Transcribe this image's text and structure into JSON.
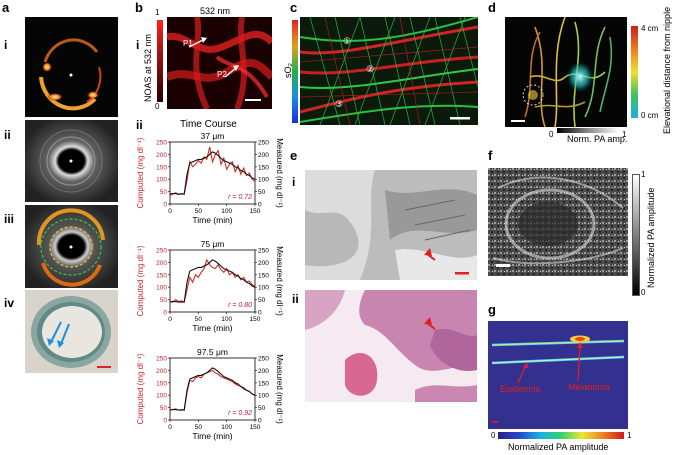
{
  "panels": {
    "a": {
      "label": "a",
      "sub": [
        "i",
        "ii",
        "iii",
        "iv"
      ]
    },
    "b": {
      "label": "b",
      "sub_i": "i",
      "sub_ii": "ii",
      "wavelength": "532 nm",
      "y_label": "NOAS at 532 nm",
      "cb_max": "1",
      "cb_min": "0",
      "p1": "P1",
      "p2": "P2",
      "time_course": "Time Course"
    },
    "c": {
      "label": "c",
      "y_label": "sO₂",
      "c1": "①",
      "c2": "②",
      "c3": "③"
    },
    "d": {
      "label": "d",
      "cb_top": "4 cm",
      "cb_bottom": "0 cm",
      "cb_label": "Elevational distance from nipple",
      "x_min": "0",
      "x_label": "Norm. PA amp.",
      "x_max": "1"
    },
    "e": {
      "label": "e",
      "sub_i": "i",
      "sub_ii": "ii"
    },
    "f": {
      "label": "f",
      "cb_max": "1",
      "cb_min": "0",
      "cb_label": "Normalized PA amplitude"
    },
    "g": {
      "label": "g",
      "epidermis": "Epidermis",
      "melanoma": "Melanoma",
      "cb_min": "0",
      "cb_max": "1",
      "cb_label": "Normalized PA amplitude"
    }
  },
  "chart_data": [
    {
      "type": "line",
      "title": "37 μm",
      "xlabel": "Time (min)",
      "ylabel_left": "Computed (mg dl⁻¹)",
      "ylabel_right": "Measured (mg dl⁻¹)",
      "xlim": [
        0,
        150
      ],
      "ylim": [
        0,
        250
      ],
      "xticks": [
        0,
        50,
        100,
        150
      ],
      "yticks": [
        0,
        50,
        100,
        150,
        200,
        250
      ],
      "annotation": "r = 0.72",
      "series": [
        {
          "color": "#d22a2a",
          "x": [
            0,
            5,
            10,
            15,
            20,
            25,
            30,
            35,
            40,
            45,
            50,
            55,
            60,
            65,
            70,
            75,
            80,
            85,
            90,
            95,
            100,
            105,
            110,
            115,
            120,
            125,
            130,
            135,
            140,
            145,
            150
          ],
          "y": [
            35,
            40,
            45,
            38,
            42,
            40,
            95,
            170,
            150,
            160,
            175,
            165,
            190,
            180,
            230,
            170,
            200,
            215,
            160,
            185,
            140,
            160,
            170,
            130,
            155,
            120,
            145,
            115,
            125,
            100,
            90
          ]
        },
        {
          "color": "#111111",
          "x": [
            0,
            5,
            10,
            15,
            20,
            25,
            30,
            35,
            40,
            45,
            50,
            55,
            60,
            65,
            70,
            75,
            80,
            85,
            90,
            95,
            100,
            105,
            110,
            115,
            120,
            125,
            130,
            135,
            140,
            145,
            150
          ],
          "y": [
            40,
            42,
            42,
            40,
            40,
            40,
            120,
            165,
            170,
            175,
            180,
            180,
            185,
            190,
            200,
            210,
            205,
            195,
            185,
            175,
            170,
            165,
            160,
            150,
            145,
            135,
            130,
            120,
            115,
            105,
            100
          ]
        }
      ]
    },
    {
      "type": "line",
      "title": "75 μm",
      "xlabel": "Time (min)",
      "ylabel_left": "Computed (mg dl⁻¹)",
      "ylabel_right": "Measured (mg dl⁻¹)",
      "xlim": [
        0,
        150
      ],
      "ylim": [
        0,
        250
      ],
      "xticks": [
        0,
        50,
        100,
        150
      ],
      "yticks": [
        0,
        50,
        100,
        150,
        200,
        250
      ],
      "annotation": "r = 0.80",
      "series": [
        {
          "color": "#d22a2a",
          "x": [
            0,
            5,
            10,
            15,
            20,
            25,
            30,
            35,
            40,
            45,
            50,
            55,
            60,
            65,
            70,
            75,
            80,
            85,
            90,
            95,
            100,
            105,
            110,
            115,
            120,
            125,
            130,
            135,
            140,
            145,
            150
          ],
          "y": [
            45,
            40,
            50,
            42,
            45,
            40,
            90,
            140,
            120,
            150,
            140,
            160,
            175,
            210,
            190,
            180,
            175,
            190,
            170,
            160,
            175,
            150,
            160,
            140,
            150,
            130,
            140,
            120,
            125,
            110,
            105
          ]
        },
        {
          "color": "#111111",
          "x": [
            0,
            5,
            10,
            15,
            20,
            25,
            30,
            35,
            40,
            45,
            50,
            55,
            60,
            65,
            70,
            75,
            80,
            85,
            90,
            95,
            100,
            105,
            110,
            115,
            120,
            125,
            130,
            135,
            140,
            145,
            150
          ],
          "y": [
            40,
            42,
            42,
            40,
            40,
            40,
            120,
            165,
            170,
            175,
            180,
            180,
            185,
            190,
            200,
            210,
            205,
            195,
            185,
            175,
            170,
            165,
            160,
            150,
            145,
            135,
            130,
            120,
            115,
            105,
            100
          ]
        }
      ]
    },
    {
      "type": "line",
      "title": "97.5 μm",
      "xlabel": "Time (min)",
      "ylabel_left": "Computed (mg dl⁻¹)",
      "ylabel_right": "Measured (mg dl⁻¹)",
      "xlim": [
        0,
        150
      ],
      "ylim": [
        0,
        250
      ],
      "xticks": [
        0,
        50,
        100,
        150
      ],
      "yticks": [
        0,
        50,
        100,
        150,
        200,
        250
      ],
      "annotation": "r = 0.92",
      "series": [
        {
          "color": "#d22a2a",
          "x": [
            0,
            5,
            10,
            15,
            20,
            25,
            30,
            35,
            40,
            45,
            50,
            55,
            60,
            65,
            70,
            75,
            80,
            85,
            90,
            95,
            100,
            105,
            110,
            115,
            120,
            125,
            130,
            135,
            140,
            145,
            150
          ],
          "y": [
            40,
            42,
            45,
            40,
            42,
            40,
            110,
            160,
            155,
            170,
            175,
            170,
            185,
            190,
            195,
            200,
            190,
            185,
            175,
            170,
            165,
            160,
            155,
            145,
            140,
            135,
            125,
            120,
            115,
            105,
            100
          ]
        },
        {
          "color": "#111111",
          "x": [
            0,
            5,
            10,
            15,
            20,
            25,
            30,
            35,
            40,
            45,
            50,
            55,
            60,
            65,
            70,
            75,
            80,
            85,
            90,
            95,
            100,
            105,
            110,
            115,
            120,
            125,
            130,
            135,
            140,
            145,
            150
          ],
          "y": [
            40,
            42,
            42,
            40,
            40,
            40,
            120,
            165,
            170,
            175,
            180,
            180,
            185,
            190,
            200,
            210,
            205,
            195,
            185,
            175,
            170,
            165,
            160,
            150,
            145,
            135,
            130,
            120,
            115,
            105,
            100
          ]
        }
      ]
    }
  ]
}
